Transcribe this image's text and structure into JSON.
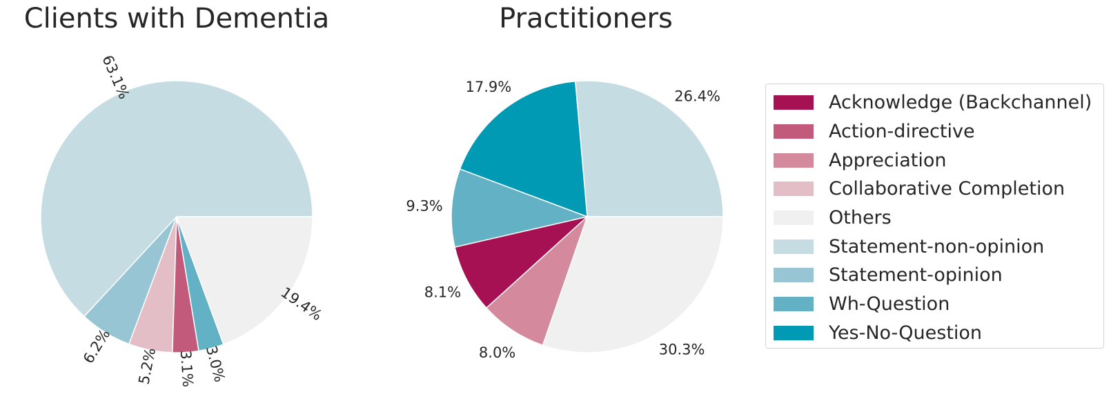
{
  "categories": [
    {
      "name": "Acknowledge (Backchannel)",
      "color": "#A51152"
    },
    {
      "name": "Action-directive",
      "color": "#C25A7C"
    },
    {
      "name": "Appreciation",
      "color": "#D48A9C"
    },
    {
      "name": "Collaborative Completion",
      "color": "#E4BEC6"
    },
    {
      "name": "Others",
      "color": "#F0F0F0"
    },
    {
      "name": "Statement-non-opinion",
      "color": "#C5DDE2"
    },
    {
      "name": "Statement-opinion",
      "color": "#97C5D3"
    },
    {
      "name": "Wh-Question",
      "color": "#63B1C5"
    },
    {
      "name": "Yes-No-Question",
      "color": "#009AB4"
    }
  ],
  "chart_data": [
    {
      "type": "pie",
      "title": "Clients with Dementia",
      "slices": [
        {
          "category": "Statement-non-opinion",
          "value": 63.1,
          "label": "63.1%"
        },
        {
          "category": "Statement-opinion",
          "value": 6.2,
          "label": "6.2%"
        },
        {
          "category": "Collaborative Completion",
          "value": 5.2,
          "label": "5.2%"
        },
        {
          "category": "Action-directive",
          "value": 3.1,
          "label": "3.1%"
        },
        {
          "category": "Wh-Question",
          "value": 3.0,
          "label": "3.0%"
        },
        {
          "category": "Others",
          "value": 19.4,
          "label": "19.4%"
        }
      ],
      "start_angle_deg": 0,
      "direction": "counterclockwise",
      "rotated_labels": true
    },
    {
      "type": "pie",
      "title": "Practitioners",
      "slices": [
        {
          "category": "Statement-non-opinion",
          "value": 26.4,
          "label": "26.4%"
        },
        {
          "category": "Yes-No-Question",
          "value": 17.9,
          "label": "17.9%"
        },
        {
          "category": "Wh-Question",
          "value": 9.3,
          "label": "9.3%"
        },
        {
          "category": "Acknowledge (Backchannel)",
          "value": 8.1,
          "label": "8.1%"
        },
        {
          "category": "Appreciation",
          "value": 8.0,
          "label": "8.0%"
        },
        {
          "category": "Others",
          "value": 30.3,
          "label": "30.3%"
        }
      ],
      "start_angle_deg": 0,
      "direction": "counterclockwise",
      "rotated_labels": false
    }
  ],
  "legend": {
    "placement": "right"
  }
}
